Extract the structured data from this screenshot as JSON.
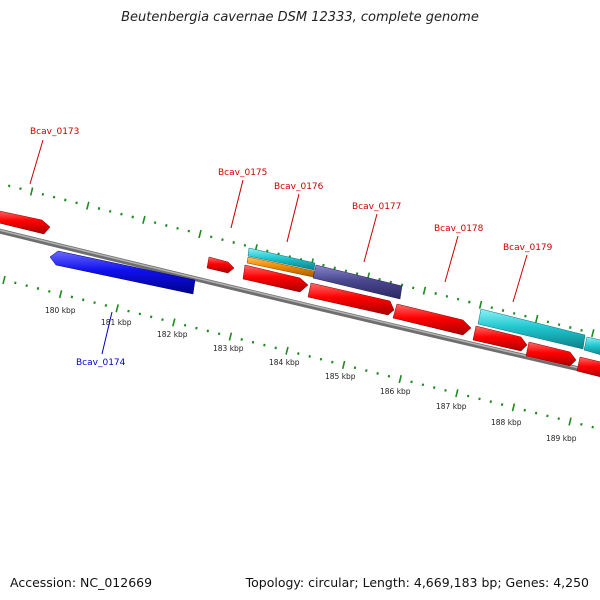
{
  "title": "Beutenbergia cavernae DSM 12333, complete genome",
  "footer": {
    "accession": "Accession: NC_012669",
    "summary": "Topology: circular; Length: 4,669,183 bp; Genes: 4,250"
  },
  "colors": {
    "gene_red": "#ff0000",
    "gene_blue": "#1010ee",
    "gene_cyan": "#20c8d0",
    "gene_orange": "#f08c00",
    "gene_slate": "#4a4890",
    "tick_green": "#1f8a1f",
    "backbone": "#8a8a8a",
    "label_red": "#cc0000",
    "label_blue": "#0000cc"
  },
  "gene_labels": [
    {
      "name": "Bcav_0173",
      "color": "red"
    },
    {
      "name": "Bcav_0174",
      "color": "blue"
    },
    {
      "name": "Bcav_0175",
      "color": "red"
    },
    {
      "name": "Bcav_0176",
      "color": "red"
    },
    {
      "name": "Bcav_0177",
      "color": "red"
    },
    {
      "name": "Bcav_0178",
      "color": "red"
    },
    {
      "name": "Bcav_0179",
      "color": "red"
    }
  ],
  "scale_labels": [
    "180 kbp",
    "181 kbp",
    "182 kbp",
    "183 kbp",
    "184 kbp",
    "185 kbp",
    "186 kbp",
    "187 kbp",
    "188 kbp",
    "189 kbp"
  ]
}
